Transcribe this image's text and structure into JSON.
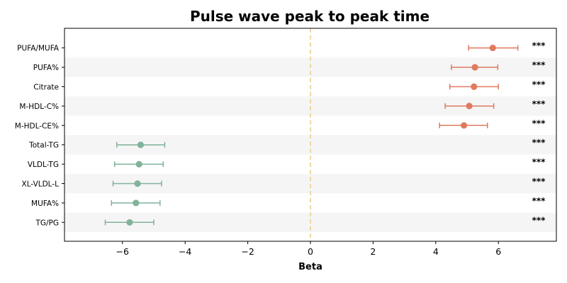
{
  "chart_data": {
    "type": "forest",
    "title": "Pulse wave peak to peak time",
    "xlabel": "Beta",
    "xlim": [
      -7.85,
      7.85
    ],
    "xticks": [
      -6,
      -4,
      -2,
      0,
      2,
      4,
      6
    ],
    "xtick_labels": [
      "−6",
      "−4",
      "−2",
      "0",
      "2",
      "4",
      "6"
    ],
    "reference_line": 0,
    "significance_label": "***",
    "colors": {
      "positive": "#E07A5F",
      "negative": "#81B29A",
      "reference": "#F2CC8F",
      "band": "#F5F5F5"
    },
    "rows": [
      {
        "label": "PUFA/MUFA",
        "beta": 5.82,
        "ci_low": 5.05,
        "ci_high": 6.62
      },
      {
        "label": "PUFA%",
        "beta": 5.25,
        "ci_low": 4.5,
        "ci_high": 5.98
      },
      {
        "label": "Citrate",
        "beta": 5.22,
        "ci_low": 4.45,
        "ci_high": 6.0
      },
      {
        "label": "M-HDL-C%",
        "beta": 5.07,
        "ci_low": 4.3,
        "ci_high": 5.85
      },
      {
        "label": "M-HDL-CE%",
        "beta": 4.9,
        "ci_low": 4.12,
        "ci_high": 5.65
      },
      {
        "label": "Total-TG",
        "beta": -5.42,
        "ci_low": -6.18,
        "ci_high": -4.65
      },
      {
        "label": "VLDL-TG",
        "beta": -5.47,
        "ci_low": -6.25,
        "ci_high": -4.7
      },
      {
        "label": "XL-VLDL-L",
        "beta": -5.52,
        "ci_low": -6.3,
        "ci_high": -4.75
      },
      {
        "label": "MUFA%",
        "beta": -5.57,
        "ci_low": -6.35,
        "ci_high": -4.8
      },
      {
        "label": "TG/PG",
        "beta": -5.77,
        "ci_low": -6.55,
        "ci_high": -5.0
      }
    ]
  }
}
